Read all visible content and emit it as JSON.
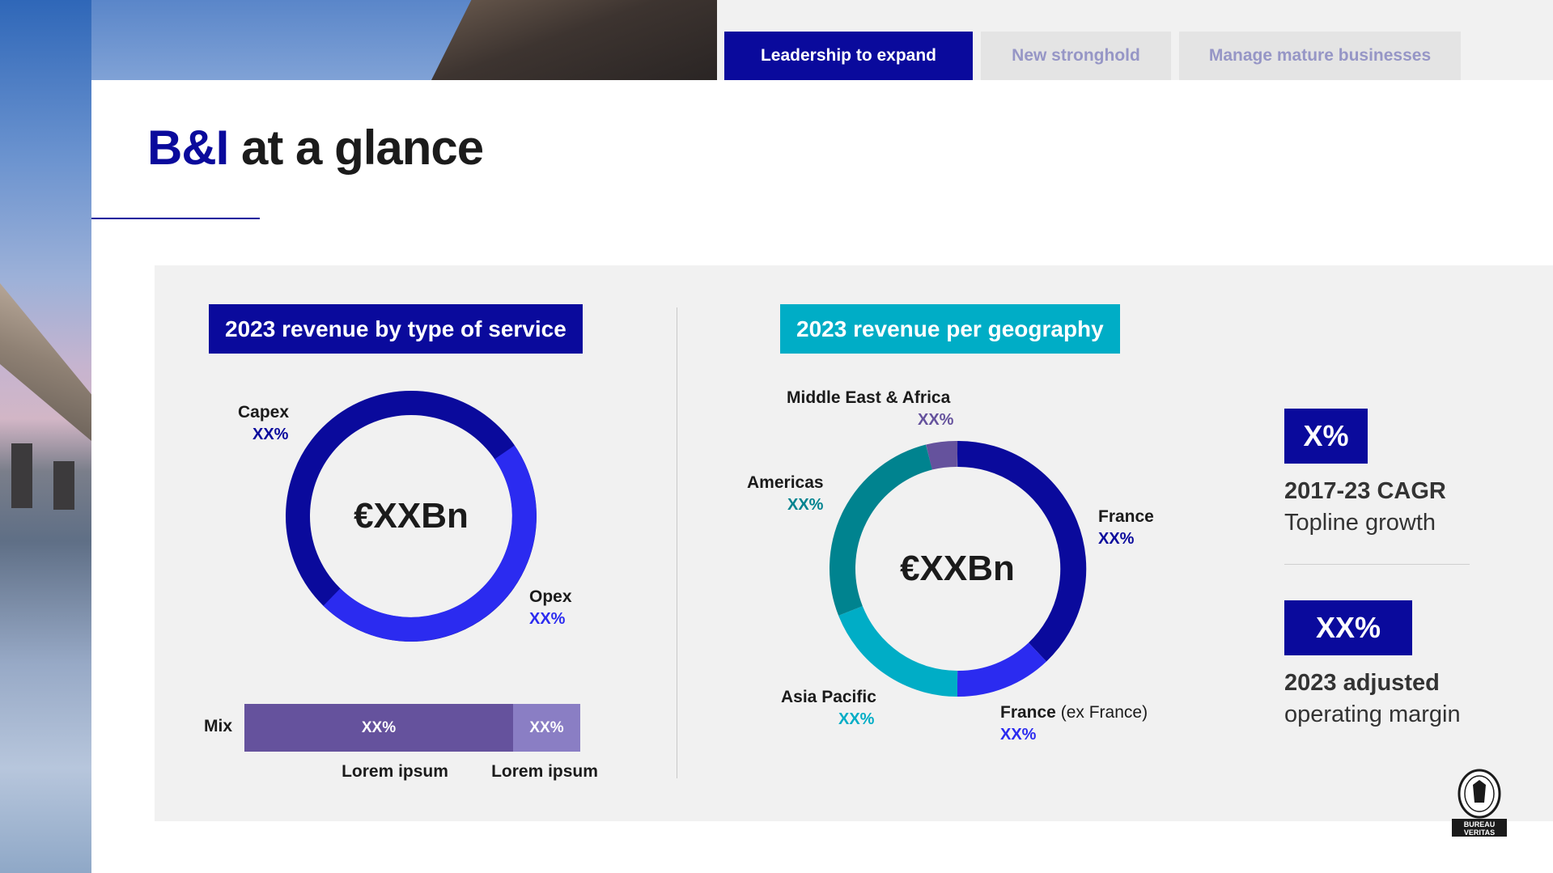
{
  "tabs": [
    {
      "label": "Leadership to expand",
      "active": true
    },
    {
      "label": "New stronghold",
      "active": false
    },
    {
      "label": "Manage mature businesses",
      "active": false
    }
  ],
  "title": {
    "accent": "B&I",
    "rest": " at a glance"
  },
  "colors": {
    "navy": "#0a0a9c",
    "blue": "#2b2bf0",
    "teal": "#00adc6",
    "dark_teal": "#00838f",
    "purple": "#65529d",
    "light_purple": "#8a7ec4",
    "panel": "#f1f1f1"
  },
  "left_section": {
    "heading": "2023 revenue by type of service",
    "center_value": "€XXBn",
    "capex": {
      "label": "Capex",
      "value": "XX%"
    },
    "opex": {
      "label": "Opex",
      "value": "XX%"
    },
    "mix": {
      "label": "Mix",
      "segments": [
        {
          "value": "XX%",
          "caption": "Lorem ipsum"
        },
        {
          "value": "XX%",
          "caption": "Lorem ipsum"
        }
      ]
    }
  },
  "right_section": {
    "heading": "2023 revenue per geography",
    "center_value": "€XXBn",
    "regions": {
      "mea": {
        "label": "Middle East & Africa",
        "value": "XX%"
      },
      "americas": {
        "label": "Americas",
        "value": "XX%"
      },
      "france": {
        "label": "France",
        "value": "XX%"
      },
      "asia": {
        "label": "Asia Pacific",
        "value": "XX%"
      },
      "france_ex": {
        "label": "France",
        "label_suffix": " (ex France)",
        "value": "XX%"
      }
    }
  },
  "kpis": [
    {
      "value": "X%",
      "line1": "2017-23 CAGR",
      "line2": "Topline growth"
    },
    {
      "value": "XX%",
      "line1": "2023 adjusted",
      "line2": "operating margin"
    }
  ],
  "logo": {
    "icon": "bureau-veritas-seal",
    "line1": "BUREAU",
    "line2": "VERITAS"
  }
}
